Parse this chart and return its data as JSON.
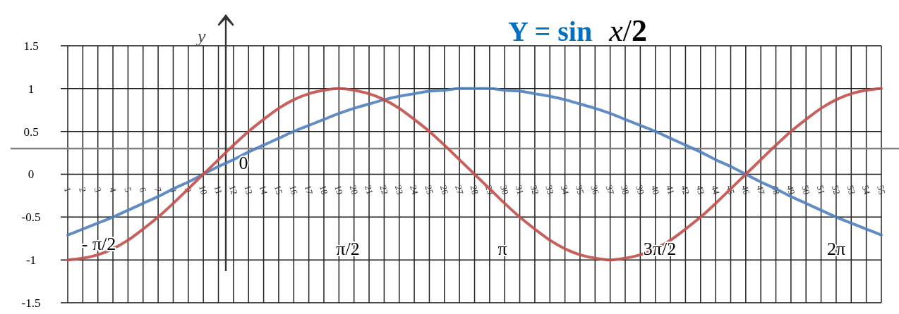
{
  "chart_data": {
    "type": "line",
    "title": "Y = sin x/2",
    "ylabel": "y",
    "categories": [
      "1",
      "2",
      "3",
      "4",
      "5",
      "6",
      "7",
      "8",
      "9",
      "10",
      "11",
      "12",
      "13",
      "14",
      "15",
      "16",
      "17",
      "18",
      "19",
      "20",
      "21",
      "22",
      "23",
      "24",
      "25",
      "26",
      "27",
      "28",
      "29",
      "30",
      "31",
      "32",
      "33",
      "34",
      "35",
      "36",
      "37",
      "38",
      "39",
      "40",
      "41",
      "42",
      "43",
      "44",
      "45",
      "46",
      "47",
      "48",
      "49",
      "50",
      "51",
      "52",
      "53",
      "54",
      "55"
    ],
    "series": [
      {
        "color": "#4f81bd",
        "values": [
          -0.71,
          -0.64,
          -0.57,
          -0.5,
          -0.42,
          -0.34,
          -0.26,
          -0.17,
          -0.09,
          0,
          0.09,
          0.17,
          0.26,
          0.34,
          0.42,
          0.5,
          0.57,
          0.64,
          0.71,
          0.77,
          0.82,
          0.87,
          0.91,
          0.94,
          0.97,
          0.98,
          1,
          1,
          1,
          0.98,
          0.97,
          0.94,
          0.91,
          0.87,
          0.82,
          0.77,
          0.71,
          0.64,
          0.57,
          0.5,
          0.42,
          0.34,
          0.26,
          0.17,
          0.09,
          0,
          -0.09,
          -0.17,
          -0.26,
          -0.34,
          -0.42,
          -0.5,
          -0.57,
          -0.64,
          -0.71
        ]
      },
      {
        "color": "#c0504d",
        "values": [
          -1,
          -0.98,
          -0.94,
          -0.87,
          -0.77,
          -0.64,
          -0.5,
          -0.34,
          -0.17,
          0,
          0.17,
          0.34,
          0.5,
          0.64,
          0.77,
          0.87,
          0.94,
          0.98,
          1,
          0.98,
          0.94,
          0.87,
          0.77,
          0.64,
          0.5,
          0.34,
          0.17,
          0,
          -0.17,
          -0.34,
          -0.5,
          -0.64,
          -0.77,
          -0.87,
          -0.94,
          -0.98,
          -1,
          -0.98,
          -0.94,
          -0.87,
          -0.77,
          -0.64,
          -0.5,
          -0.34,
          -0.17,
          0,
          0.17,
          0.34,
          0.5,
          0.64,
          0.77,
          0.87,
          0.94,
          0.98,
          1
        ]
      }
    ],
    "ylim": [
      -1.5,
      1.5
    ],
    "yticks": [
      -1.5,
      -1,
      -0.5,
      0,
      0.5,
      1,
      1.5
    ],
    "grid": true,
    "ref_lines": [
      {
        "axis": "y",
        "value": 0.3,
        "color": "#808080"
      }
    ],
    "annotations": [
      "0",
      "- π/2",
      "π/2",
      "π",
      "3π/2",
      "2π"
    ]
  }
}
